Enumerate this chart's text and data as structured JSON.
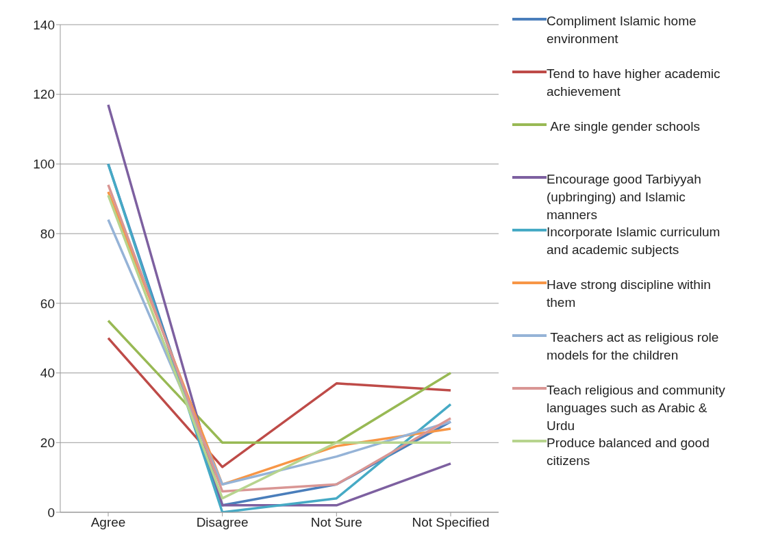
{
  "chart_data": {
    "type": "line",
    "categories": [
      "Agree",
      "Disagree",
      "Not Sure",
      "Not Specified"
    ],
    "series": [
      {
        "name": "Compliment Islamic home environment",
        "color": "#4a7ebb",
        "values": [
          100,
          2,
          8,
          26
        ]
      },
      {
        "name": "Tend to have higher academic achievement",
        "color": "#be4b48",
        "values": [
          50,
          13,
          37,
          35
        ]
      },
      {
        "name": " Are single gender schools",
        "color": "#98b954",
        "values": [
          55,
          20,
          20,
          40
        ]
      },
      {
        "name": "Encourage good Tarbiyyah (upbringing) and Islamic manners",
        "color": "#7d60a0",
        "values": [
          117,
          2,
          2,
          14
        ]
      },
      {
        "name": "Incorporate Islamic curriculum and academic subjects",
        "color": "#46aac5",
        "values": [
          100,
          0,
          4,
          31
        ]
      },
      {
        "name": "Have strong discipline within them",
        "color": "#f79646",
        "values": [
          92,
          8,
          19,
          24
        ]
      },
      {
        "name": " Teachers act as religious role models for the children",
        "color": "#95b3d7",
        "values": [
          84,
          8,
          16,
          26
        ]
      },
      {
        "name": "Teach religious and community languages such as Arabic & Urdu",
        "color": "#d99694",
        "values": [
          94,
          6,
          8,
          27
        ]
      },
      {
        "name": "Produce balanced and good citizens",
        "color": "#b7d48e",
        "values": [
          91,
          4,
          20,
          20
        ]
      }
    ],
    "ylim": [
      0,
      140
    ],
    "yticks": [
      0,
      20,
      40,
      60,
      80,
      100,
      120,
      140
    ],
    "grid": "y",
    "legend": "right",
    "marker": "none",
    "line_style": "solid"
  }
}
